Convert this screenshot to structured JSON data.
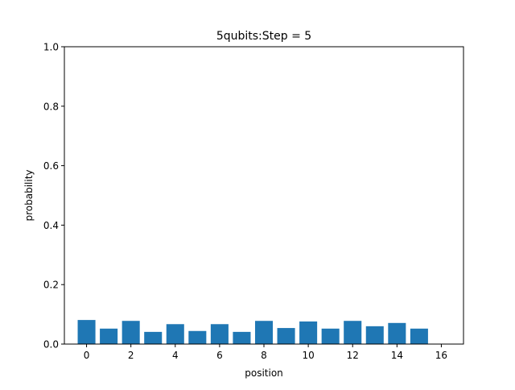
{
  "chart_data": {
    "type": "bar",
    "title": "5qubits:Step = 5",
    "xlabel": "position",
    "ylabel": "probability",
    "x": [
      0,
      1,
      2,
      3,
      4,
      5,
      6,
      7,
      8,
      9,
      10,
      11,
      12,
      13,
      14,
      15
    ],
    "values": [
      0.081,
      0.052,
      0.078,
      0.041,
      0.067,
      0.044,
      0.067,
      0.041,
      0.078,
      0.054,
      0.076,
      0.052,
      0.078,
      0.06,
      0.071,
      0.052
    ],
    "xlim": [
      -1,
      17
    ],
    "ylim": [
      0,
      1.0
    ],
    "xticks": [
      0,
      2,
      4,
      6,
      8,
      10,
      12,
      14,
      16
    ],
    "xtick_labels": [
      "0",
      "2",
      "4",
      "6",
      "8",
      "10",
      "12",
      "14",
      "16"
    ],
    "yticks": [
      0,
      0.2,
      0.4,
      0.6,
      0.8,
      1.0
    ],
    "ytick_labels": [
      "0.0",
      "0.2",
      "0.4",
      "0.6",
      "0.8",
      "1.0"
    ],
    "bar_color": "#1f77b4",
    "grid": false,
    "legend": "none"
  }
}
